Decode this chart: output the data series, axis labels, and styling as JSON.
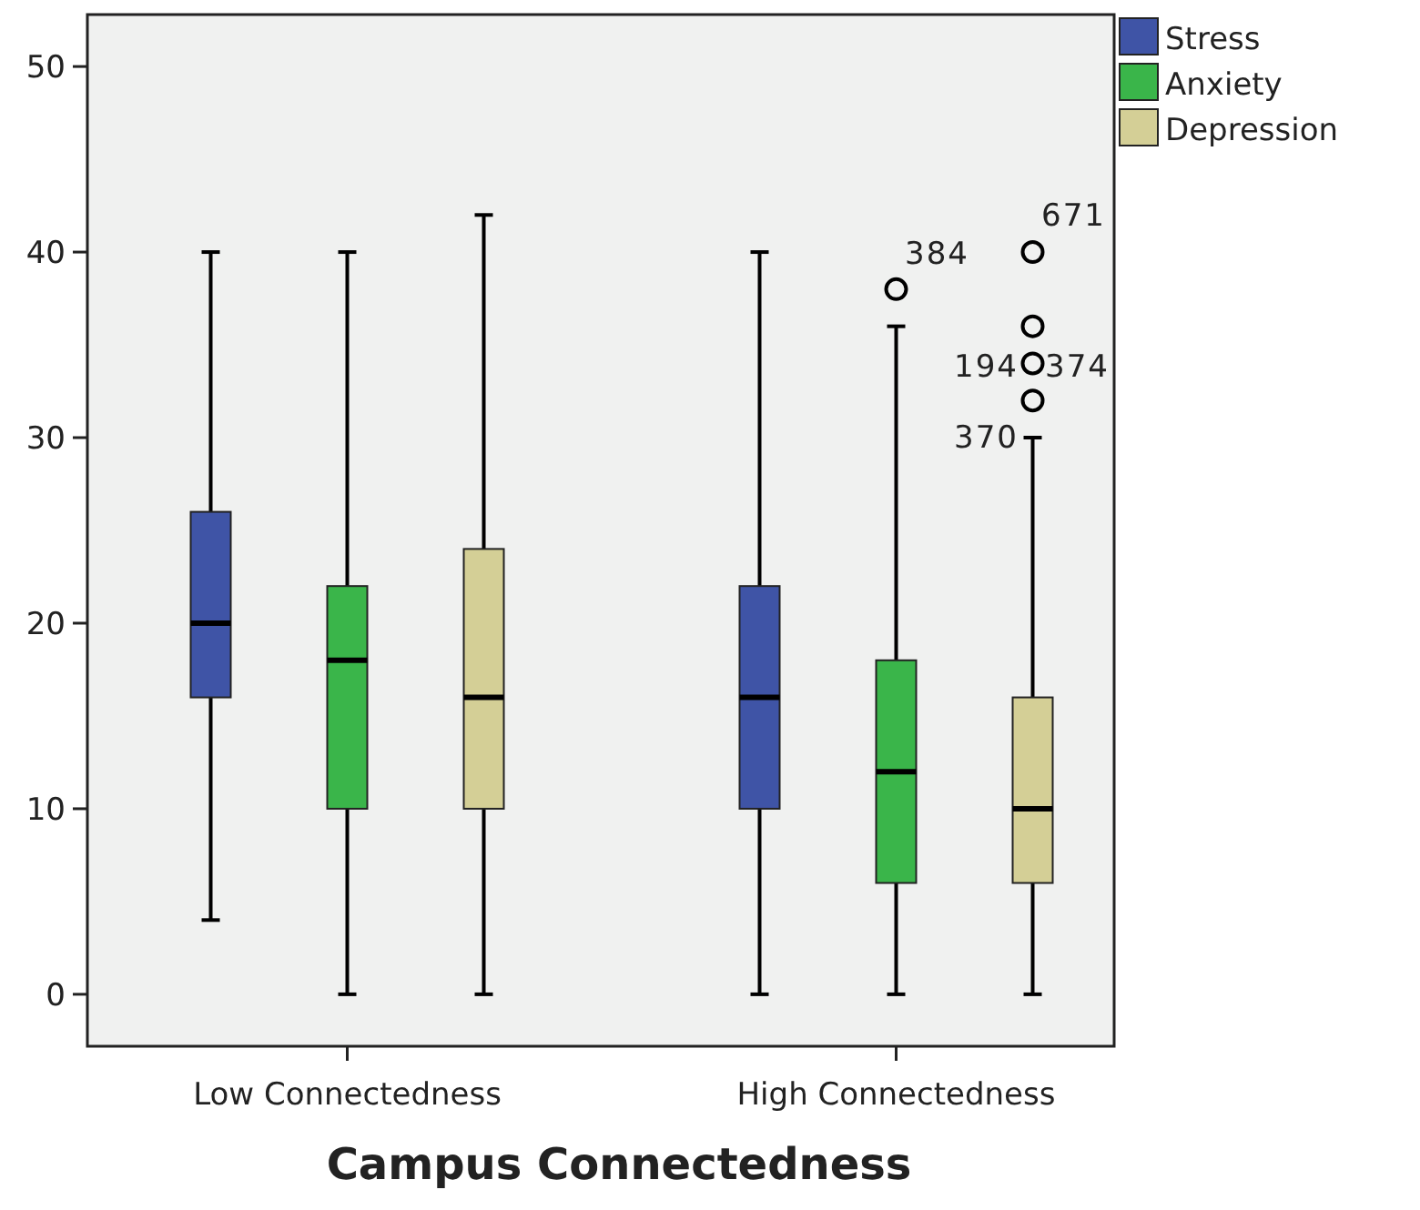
{
  "chart_data": {
    "type": "box",
    "xlabel": "Campus Connectedness",
    "categories": [
      "Low Connectedness",
      "High Connectedness"
    ],
    "ylim": [
      -2.8,
      52.8
    ],
    "yticks": [
      0,
      10,
      20,
      30,
      40,
      50
    ],
    "grid": false,
    "legend": "top right",
    "marker": "circle",
    "series": [
      {
        "name": "Stress",
        "color": "#3f54a6",
        "boxes": [
          {
            "low": 4,
            "q1": 16,
            "median": 20,
            "q3": 26,
            "high": 40
          },
          {
            "low": 0,
            "q1": 10,
            "median": 16,
            "q3": 22,
            "high": 40
          }
        ]
      },
      {
        "name": "Anxiety",
        "color": "#3ab54a",
        "boxes": [
          {
            "low": 0,
            "q1": 10,
            "median": 18,
            "q3": 22,
            "high": 40
          },
          {
            "low": 0,
            "q1": 6,
            "median": 12,
            "q3": 18,
            "high": 36,
            "outliers": [
              38
            ]
          }
        ]
      },
      {
        "name": "Depression",
        "color": "#d4cf96",
        "boxes": [
          {
            "low": 0,
            "q1": 10,
            "median": 16,
            "q3": 24,
            "high": 42
          },
          {
            "low": 0,
            "q1": 6,
            "median": 10,
            "q3": 16,
            "high": 30,
            "outliers": [
              32,
              34,
              36,
              40
            ]
          }
        ]
      }
    ],
    "annotations": [
      "384",
      "671",
      "194",
      "374",
      "370"
    ]
  }
}
